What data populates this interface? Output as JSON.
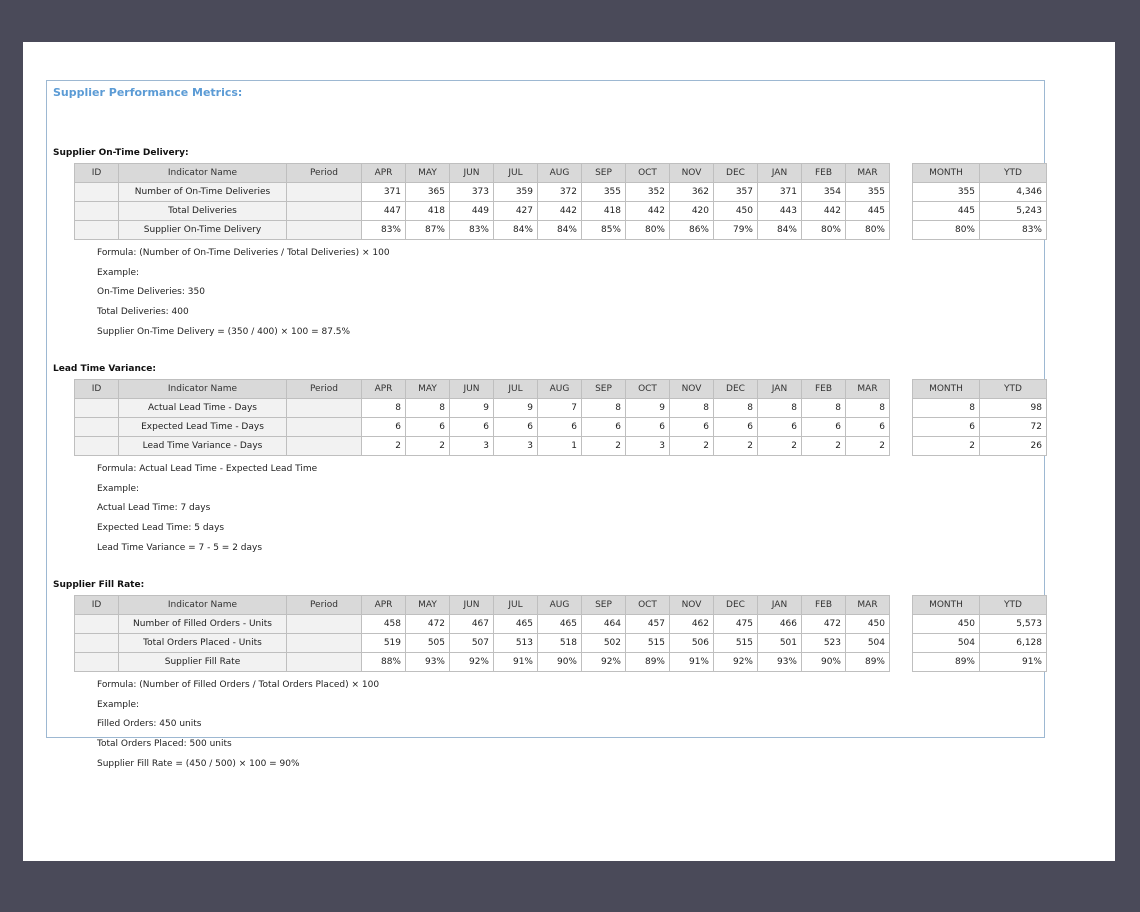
{
  "title": "Supplier Performance Metrics:",
  "headers": {
    "id": "ID",
    "indicator": "Indicator Name",
    "period": "Period",
    "months": [
      "APR",
      "MAY",
      "JUN",
      "JUL",
      "AUG",
      "SEP",
      "OCT",
      "NOV",
      "DEC",
      "JAN",
      "FEB",
      "MAR"
    ],
    "month": "MONTH",
    "ytd": "YTD"
  },
  "sections": [
    {
      "title": "Supplier On-Time Delivery:",
      "rows": [
        {
          "name": "Number of On-Time Deliveries",
          "values": [
            "371",
            "365",
            "373",
            "359",
            "372",
            "355",
            "352",
            "362",
            "357",
            "371",
            "354",
            "355"
          ],
          "month": "355",
          "ytd": "4,346"
        },
        {
          "name": "Total Deliveries",
          "values": [
            "447",
            "418",
            "449",
            "427",
            "442",
            "418",
            "442",
            "420",
            "450",
            "443",
            "442",
            "445"
          ],
          "month": "445",
          "ytd": "5,243"
        },
        {
          "name": "Supplier On-Time Delivery",
          "values": [
            "83%",
            "87%",
            "83%",
            "84%",
            "84%",
            "85%",
            "80%",
            "86%",
            "79%",
            "84%",
            "80%",
            "80%"
          ],
          "month": "80%",
          "ytd": "83%"
        }
      ],
      "notes": [
        "Formula: (Number of On-Time Deliveries / Total Deliveries) × 100",
        "Example:",
        "On-Time Deliveries: 350",
        "Total Deliveries: 400",
        "Supplier On-Time Delivery = (350 / 400) × 100 = 87.5%"
      ]
    },
    {
      "title": "Lead Time Variance:",
      "rows": [
        {
          "name": "Actual Lead Time - Days",
          "values": [
            "8",
            "8",
            "9",
            "9",
            "7",
            "8",
            "9",
            "8",
            "8",
            "8",
            "8",
            "8"
          ],
          "month": "8",
          "ytd": "98"
        },
        {
          "name": "Expected Lead Time - Days",
          "values": [
            "6",
            "6",
            "6",
            "6",
            "6",
            "6",
            "6",
            "6",
            "6",
            "6",
            "6",
            "6"
          ],
          "month": "6",
          "ytd": "72"
        },
        {
          "name": "Lead Time Variance - Days",
          "values": [
            "2",
            "2",
            "3",
            "3",
            "1",
            "2",
            "3",
            "2",
            "2",
            "2",
            "2",
            "2"
          ],
          "month": "2",
          "ytd": "26"
        }
      ],
      "notes": [
        "Formula: Actual Lead Time - Expected Lead Time",
        "Example:",
        "Actual Lead Time: 7 days",
        "Expected Lead Time: 5 days",
        "Lead Time Variance = 7 - 5 = 2 days"
      ]
    },
    {
      "title": "Supplier Fill Rate:",
      "rows": [
        {
          "name": "Number of Filled Orders - Units",
          "values": [
            "458",
            "472",
            "467",
            "465",
            "465",
            "464",
            "457",
            "462",
            "475",
            "466",
            "472",
            "450"
          ],
          "month": "450",
          "ytd": "5,573"
        },
        {
          "name": "Total Orders Placed - Units",
          "values": [
            "519",
            "505",
            "507",
            "513",
            "518",
            "502",
            "515",
            "506",
            "515",
            "501",
            "523",
            "504"
          ],
          "month": "504",
          "ytd": "6,128"
        },
        {
          "name": "Supplier Fill Rate",
          "values": [
            "88%",
            "93%",
            "92%",
            "91%",
            "90%",
            "92%",
            "89%",
            "91%",
            "92%",
            "93%",
            "90%",
            "89%"
          ],
          "month": "89%",
          "ytd": "91%"
        }
      ],
      "notes": [
        "Formula: (Number of Filled Orders / Total Orders Placed) × 100",
        "Example:",
        "Filled Orders: 450 units",
        "Total Orders Placed: 500 units",
        "Supplier Fill Rate = (450 / 500) × 100 = 90%"
      ]
    }
  ]
}
